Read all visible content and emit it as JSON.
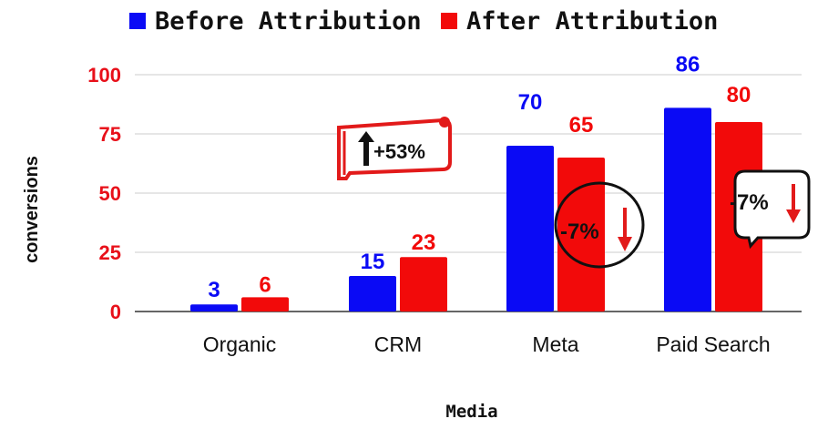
{
  "chart_data": {
    "type": "bar",
    "categories": [
      "Organic",
      "CRM",
      "Meta",
      "Paid Search"
    ],
    "series": [
      {
        "name": "Before Attribution",
        "color": "#0a0af5",
        "values": [
          3,
          15,
          70,
          86
        ]
      },
      {
        "name": "After Attribution",
        "color": "#f20a0a",
        "values": [
          6,
          23,
          65,
          80
        ]
      }
    ],
    "xlabel": "Media",
    "ylabel": "conversions",
    "ylim": [
      0,
      100
    ],
    "yticks": [
      "0",
      "25",
      "50",
      "75",
      "100"
    ],
    "ytick_color": "#e8101a",
    "grid": true,
    "legend_position": "top",
    "annotations": [
      {
        "text": "+53%",
        "category": "CRM",
        "shape": "scroll",
        "arrow": "up"
      },
      {
        "text": "-7%",
        "category": "Meta",
        "shape": "ellipse",
        "arrow": "down"
      },
      {
        "text": "-7%",
        "category": "Paid Search",
        "shape": "callout",
        "arrow": "down"
      }
    ]
  }
}
